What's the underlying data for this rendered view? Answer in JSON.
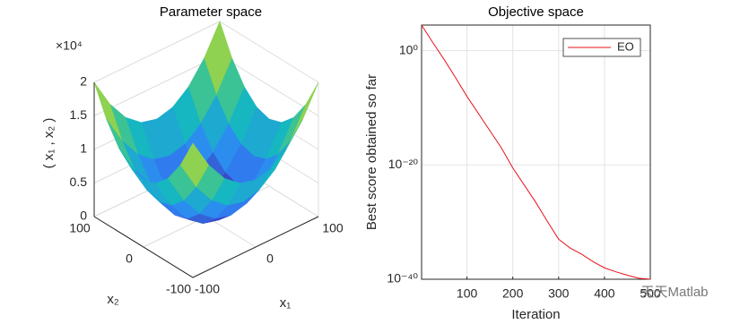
{
  "chart_data": [
    {
      "type": "surface",
      "title": "Parameter space",
      "xlabel": "x₁",
      "ylabel": "x₂",
      "zlabel": "( x₁ , x₂ )",
      "z_multiplier": "×10⁴",
      "x1": [
        -100,
        -75,
        -50,
        -25,
        0,
        25,
        50,
        75,
        100
      ],
      "x2": [
        -100,
        -75,
        -50,
        -25,
        0,
        25,
        50,
        75,
        100
      ],
      "z": [
        [
          20000,
          15625,
          12500,
          10625,
          10000,
          10625,
          12500,
          15625,
          20000
        ],
        [
          15625,
          11250,
          8125,
          6250,
          5625,
          6250,
          8125,
          11250,
          15625
        ],
        [
          12500,
          8125,
          5000,
          3125,
          2500,
          3125,
          5000,
          8125,
          12500
        ],
        [
          10625,
          6250,
          3125,
          1250,
          625,
          1250,
          3125,
          6250,
          10625
        ],
        [
          10000,
          5625,
          2500,
          625,
          0,
          625,
          2500,
          5625,
          10000
        ],
        [
          10625,
          6250,
          3125,
          1250,
          625,
          1250,
          3125,
          6250,
          10625
        ],
        [
          12500,
          8125,
          5000,
          3125,
          2500,
          3125,
          5000,
          8125,
          12500
        ],
        [
          15625,
          11250,
          8125,
          6250,
          5625,
          6250,
          8125,
          11250,
          15625
        ],
        [
          20000,
          15625,
          12500,
          10625,
          10000,
          10625,
          12500,
          15625,
          20000
        ]
      ],
      "xlim": [
        -100,
        100
      ],
      "ylim": [
        -100,
        100
      ],
      "zlim": [
        0,
        20000
      ],
      "xticks": [
        -100,
        0,
        100
      ],
      "yticks": [
        -100,
        0,
        100
      ],
      "zticks": [
        0,
        {
          "value": 5000,
          "label": "0.5"
        },
        {
          "value": 10000,
          "label": "1"
        },
        {
          "value": 15000,
          "label": "1.5"
        },
        {
          "value": 20000,
          "label": "2"
        }
      ],
      "grid": true
    },
    {
      "type": "line",
      "title": "Objective space",
      "xlabel": "Iteration",
      "ylabel": "Best score obtained so far",
      "x": [
        1,
        25,
        50,
        75,
        100,
        125,
        150,
        175,
        200,
        225,
        250,
        275,
        300,
        325,
        350,
        375,
        400,
        425,
        450,
        475,
        500
      ],
      "series": [
        {
          "name": "EO",
          "color": "#e8141a",
          "values": [
            30000,
            30,
            0.03,
            2e-05,
            1e-08,
            1e-11,
            1e-14,
            1e-17,
            3e-21,
            3e-24,
            3e-27,
            1.5e-30,
            1e-33,
            3e-35,
            2.5e-36,
            1.2e-37,
            1e-38,
            2e-39,
            5e-40,
            1.5e-40,
            1e-40
          ]
        }
      ],
      "xlim": [
        1,
        500
      ],
      "ylim": [
        1e-40,
        30000
      ],
      "log_y": true,
      "xticks": [
        100,
        200,
        300,
        400,
        500
      ],
      "yticks": [
        {
          "value": 1e-40,
          "label": "10⁻⁴⁰"
        },
        {
          "value": 1e-20,
          "label": "10⁻²⁰"
        },
        {
          "value": 1,
          "label": "10⁰"
        }
      ],
      "grid": true,
      "legend": "northeast"
    }
  ],
  "watermark": "天天Matlab"
}
